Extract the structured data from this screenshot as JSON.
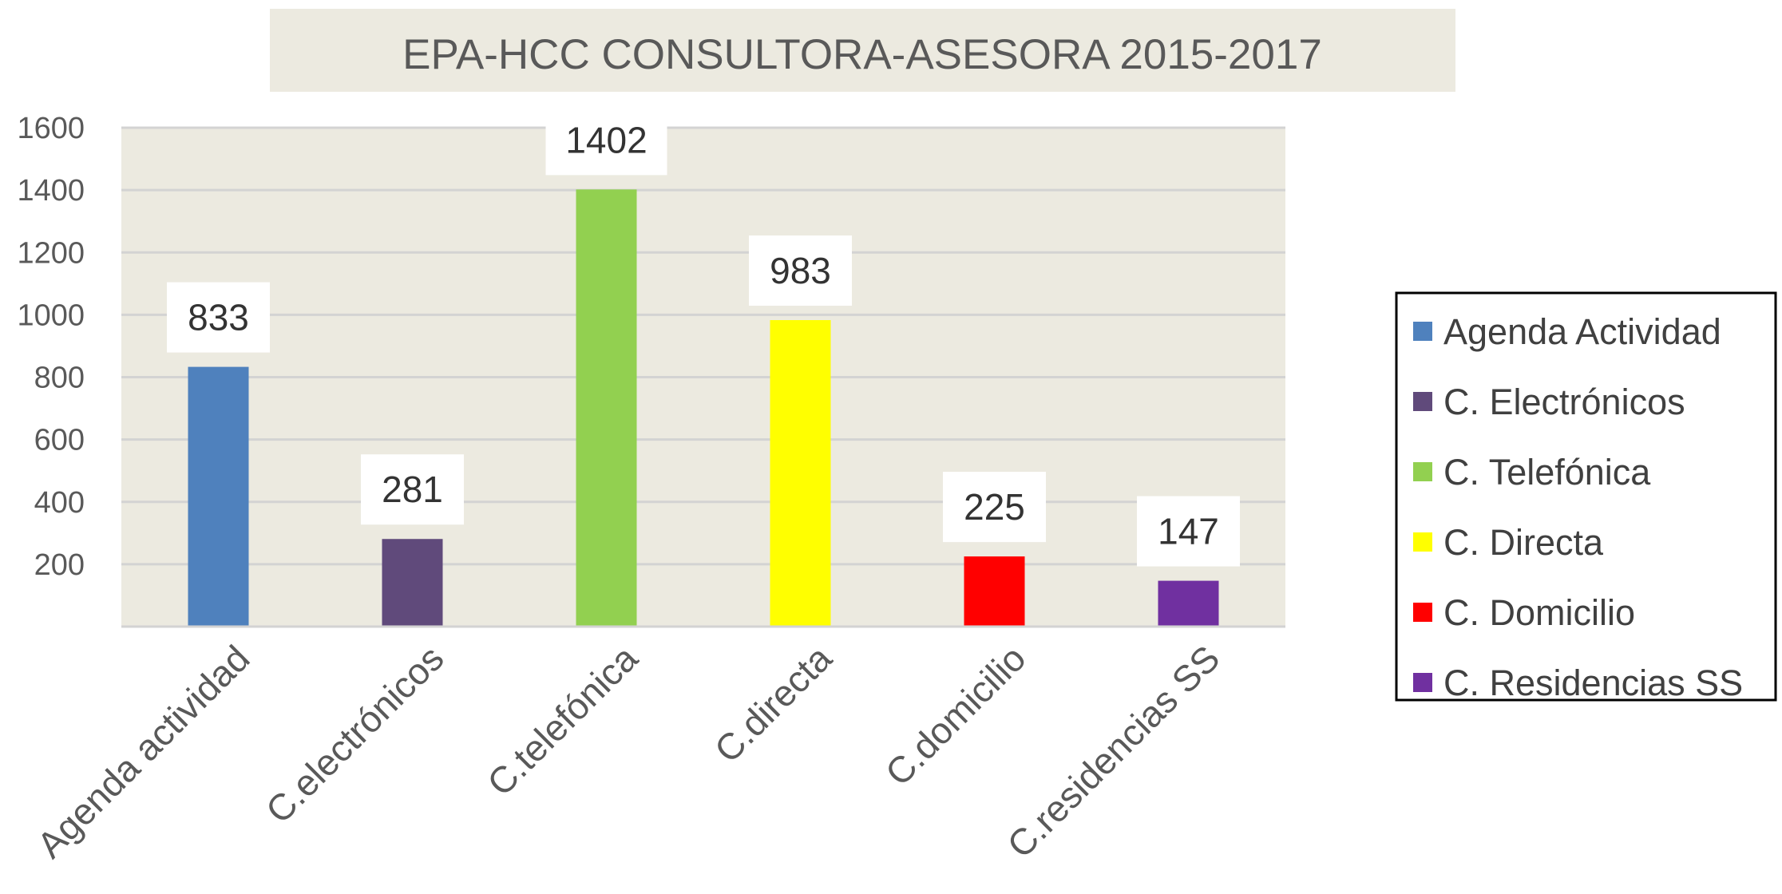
{
  "chart_data": {
    "type": "bar",
    "title": "EPA-HCC CONSULTORA-ASESORA 2015-2017",
    "categories": [
      "Agenda actividad",
      "C.electrónicos",
      "C.telefónica",
      "C.directa",
      "C.domicilio",
      "C.residencias SS"
    ],
    "values": [
      833,
      281,
      1402,
      983,
      225,
      147
    ],
    "data_labels": [
      "833",
      "281",
      "1402",
      "983",
      "225",
      "147"
    ],
    "colors": [
      "#4f81bd",
      "#604a7b",
      "#92d050",
      "#ffff00",
      "#ff0000",
      "#7030a0"
    ],
    "ylim": [
      0,
      1600
    ],
    "yticks": [
      200,
      400,
      600,
      800,
      1000,
      1200,
      1400,
      1600
    ],
    "ytick_labels": [
      "200",
      "400",
      "600",
      "800",
      "1000",
      "1200",
      "1400",
      "1600"
    ],
    "xlabel": "",
    "ylabel": "",
    "grid": true,
    "legend": {
      "placement": "right",
      "entries": [
        "Agenda Actividad",
        "C. Electrónicos",
        "C. Telefónica",
        "C. Directa",
        "C. Domicilio",
        "C. Residencias SS"
      ]
    },
    "background_color": "#eceae0"
  }
}
